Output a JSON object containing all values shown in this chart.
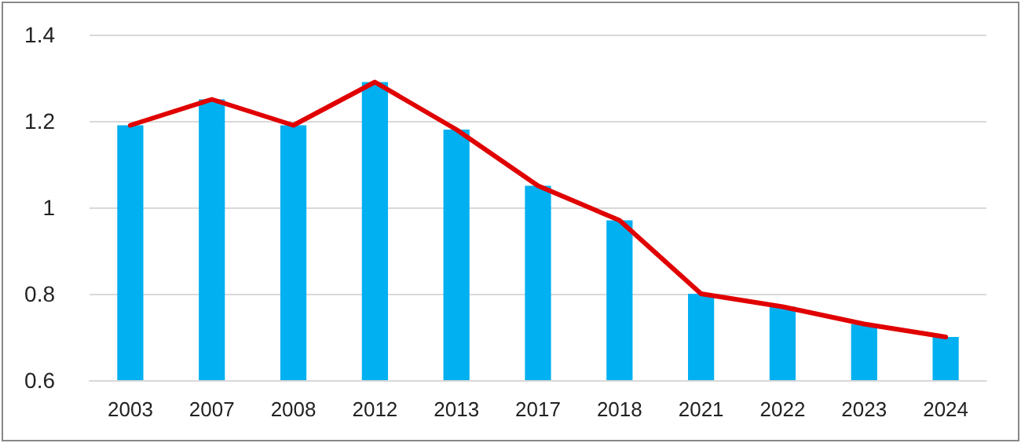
{
  "chart_data": {
    "type": "bar",
    "categories": [
      "2003",
      "2007",
      "2008",
      "2012",
      "2013",
      "2017",
      "2018",
      "2021",
      "2022",
      "2023",
      "2024"
    ],
    "series": [
      {
        "color": "#00b0f0",
        "values": [
          1.19,
          1.25,
          1.19,
          1.29,
          1.18,
          1.05,
          0.97,
          0.8,
          0.77,
          0.73,
          0.7
        ]
      },
      {
        "type": "line",
        "color": "#e00000",
        "values": [
          1.19,
          1.25,
          1.19,
          1.29,
          1.18,
          1.05,
          0.97,
          0.8,
          0.77,
          0.73,
          0.7
        ]
      }
    ],
    "ylim": [
      0.6,
      1.4
    ],
    "yticks": [
      0.6,
      0.8,
      1,
      1.2,
      1.4
    ],
    "grid": "y",
    "marker": "none",
    "line_style": "solid"
  }
}
